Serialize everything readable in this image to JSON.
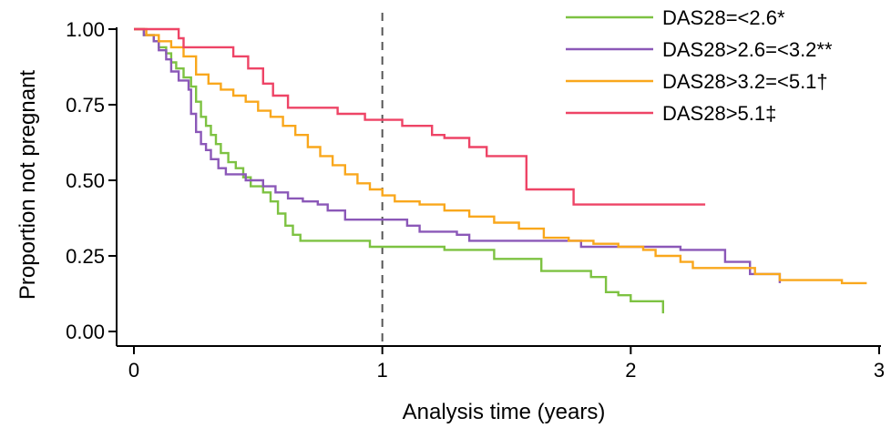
{
  "chart_data": {
    "type": "line",
    "xlabel": "Analysis time (years)",
    "ylabel": "Proportion not pregnant",
    "xlim": [
      0,
      3
    ],
    "ylim": [
      0,
      1
    ],
    "x_ticks": [
      {
        "value": 0,
        "label": "0"
      },
      {
        "value": 1,
        "label": "1"
      },
      {
        "value": 2,
        "label": "2"
      },
      {
        "value": 3,
        "label": "3"
      }
    ],
    "y_ticks": [
      {
        "value": 0,
        "label": "0.00"
      },
      {
        "value": 0.25,
        "label": "0.25"
      },
      {
        "value": 0.5,
        "label": "0.50"
      },
      {
        "value": 0.75,
        "label": "0.75"
      },
      {
        "value": 1,
        "label": "1.00"
      }
    ],
    "reference_line": {
      "x": 1,
      "style": "dashed"
    },
    "legend": "top-right",
    "series": [
      {
        "name": "DAS28=<2.6*",
        "color": "#7dc242",
        "step": true,
        "points": [
          [
            0,
            1.0
          ],
          [
            0.04,
            0.98
          ],
          [
            0.08,
            0.96
          ],
          [
            0.1,
            0.94
          ],
          [
            0.13,
            0.92
          ],
          [
            0.15,
            0.89
          ],
          [
            0.17,
            0.87
          ],
          [
            0.2,
            0.84
          ],
          [
            0.23,
            0.81
          ],
          [
            0.25,
            0.76
          ],
          [
            0.27,
            0.71
          ],
          [
            0.29,
            0.68
          ],
          [
            0.31,
            0.65
          ],
          [
            0.33,
            0.62
          ],
          [
            0.35,
            0.59
          ],
          [
            0.38,
            0.56
          ],
          [
            0.41,
            0.54
          ],
          [
            0.44,
            0.51
          ],
          [
            0.47,
            0.48
          ],
          [
            0.52,
            0.46
          ],
          [
            0.55,
            0.43
          ],
          [
            0.58,
            0.39
          ],
          [
            0.61,
            0.35
          ],
          [
            0.64,
            0.32
          ],
          [
            0.67,
            0.3
          ],
          [
            0.9,
            0.3
          ],
          [
            0.95,
            0.28
          ],
          [
            1.2,
            0.28
          ],
          [
            1.25,
            0.27
          ],
          [
            1.4,
            0.27
          ],
          [
            1.45,
            0.24
          ],
          [
            1.6,
            0.24
          ],
          [
            1.64,
            0.2
          ],
          [
            1.8,
            0.2
          ],
          [
            1.84,
            0.18
          ],
          [
            1.9,
            0.13
          ],
          [
            1.95,
            0.12
          ],
          [
            2.0,
            0.1
          ],
          [
            2.13,
            0.1
          ],
          [
            2.13,
            0.06
          ]
        ]
      },
      {
        "name": "DAS28>2.6=<3.2**",
        "color": "#8b58b8",
        "step": true,
        "points": [
          [
            0,
            1.0
          ],
          [
            0.04,
            0.98
          ],
          [
            0.08,
            0.96
          ],
          [
            0.1,
            0.93
          ],
          [
            0.13,
            0.9
          ],
          [
            0.15,
            0.86
          ],
          [
            0.18,
            0.83
          ],
          [
            0.22,
            0.8
          ],
          [
            0.23,
            0.72
          ],
          [
            0.25,
            0.66
          ],
          [
            0.27,
            0.62
          ],
          [
            0.29,
            0.6
          ],
          [
            0.31,
            0.57
          ],
          [
            0.34,
            0.54
          ],
          [
            0.37,
            0.52
          ],
          [
            0.45,
            0.5
          ],
          [
            0.52,
            0.48
          ],
          [
            0.57,
            0.46
          ],
          [
            0.62,
            0.44
          ],
          [
            0.68,
            0.43
          ],
          [
            0.74,
            0.42
          ],
          [
            0.78,
            0.4
          ],
          [
            0.85,
            0.37
          ],
          [
            0.97,
            0.37
          ],
          [
            1.1,
            0.35
          ],
          [
            1.15,
            0.33
          ],
          [
            1.3,
            0.32
          ],
          [
            1.35,
            0.3
          ],
          [
            1.75,
            0.3
          ],
          [
            1.8,
            0.28
          ],
          [
            2.2,
            0.27
          ],
          [
            2.38,
            0.27
          ],
          [
            2.38,
            0.23
          ],
          [
            2.48,
            0.23
          ],
          [
            2.48,
            0.19
          ],
          [
            2.6,
            0.19
          ],
          [
            2.6,
            0.16
          ]
        ]
      },
      {
        "name": "DAS28>3.2=<5.1†",
        "color": "#f9a71c",
        "step": true,
        "points": [
          [
            0,
            1.0
          ],
          [
            0.05,
            0.98
          ],
          [
            0.1,
            0.96
          ],
          [
            0.15,
            0.94
          ],
          [
            0.2,
            0.91
          ],
          [
            0.25,
            0.85
          ],
          [
            0.3,
            0.82
          ],
          [
            0.35,
            0.8
          ],
          [
            0.4,
            0.78
          ],
          [
            0.45,
            0.76
          ],
          [
            0.5,
            0.73
          ],
          [
            0.55,
            0.71
          ],
          [
            0.6,
            0.68
          ],
          [
            0.65,
            0.65
          ],
          [
            0.7,
            0.61
          ],
          [
            0.75,
            0.58
          ],
          [
            0.8,
            0.55
          ],
          [
            0.85,
            0.52
          ],
          [
            0.9,
            0.49
          ],
          [
            0.95,
            0.47
          ],
          [
            1.0,
            0.45
          ],
          [
            1.05,
            0.43
          ],
          [
            1.15,
            0.42
          ],
          [
            1.25,
            0.4
          ],
          [
            1.35,
            0.38
          ],
          [
            1.45,
            0.36
          ],
          [
            1.55,
            0.34
          ],
          [
            1.65,
            0.31
          ],
          [
            1.75,
            0.3
          ],
          [
            1.85,
            0.29
          ],
          [
            1.95,
            0.28
          ],
          [
            2.05,
            0.27
          ],
          [
            2.1,
            0.25
          ],
          [
            2.2,
            0.23
          ],
          [
            2.25,
            0.21
          ],
          [
            2.4,
            0.21
          ],
          [
            2.5,
            0.19
          ],
          [
            2.6,
            0.17
          ],
          [
            2.75,
            0.17
          ],
          [
            2.85,
            0.16
          ],
          [
            2.95,
            0.16
          ]
        ]
      },
      {
        "name": "DAS28>5.1‡",
        "color": "#ee4466",
        "step": true,
        "points": [
          [
            0,
            1.0
          ],
          [
            0.12,
            1.0
          ],
          [
            0.18,
            0.97
          ],
          [
            0.2,
            0.94
          ],
          [
            0.35,
            0.94
          ],
          [
            0.4,
            0.91
          ],
          [
            0.46,
            0.87
          ],
          [
            0.52,
            0.82
          ],
          [
            0.56,
            0.78
          ],
          [
            0.62,
            0.74
          ],
          [
            0.8,
            0.74
          ],
          [
            0.82,
            0.72
          ],
          [
            0.9,
            0.72
          ],
          [
            0.93,
            0.7
          ],
          [
            1.05,
            0.7
          ],
          [
            1.08,
            0.68
          ],
          [
            1.2,
            0.65
          ],
          [
            1.25,
            0.64
          ],
          [
            1.35,
            0.61
          ],
          [
            1.42,
            0.58
          ],
          [
            1.55,
            0.58
          ],
          [
            1.58,
            0.47
          ],
          [
            1.77,
            0.47
          ],
          [
            1.77,
            0.42
          ],
          [
            2.3,
            0.42
          ]
        ]
      }
    ]
  }
}
